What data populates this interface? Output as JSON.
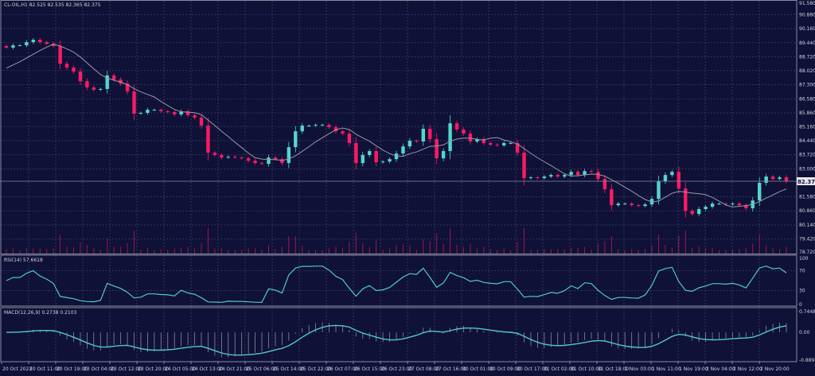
{
  "chart_data": {
    "type": "candlestick",
    "symbol_header": "CL-OIL,H1  82.525 82.535 82.365 82.375",
    "current_price_label": "82.375",
    "price_axis": {
      "range": [
        78.72,
        91.58
      ],
      "ticks": [
        "91.580",
        "90.880",
        "90.160",
        "89.440",
        "88.720",
        "88.020",
        "87.300",
        "86.580",
        "85.860",
        "85.160",
        "84.440",
        "83.720",
        "83.000",
        "81.580",
        "80.860",
        "80.140",
        "79.420",
        "78.720"
      ]
    },
    "closes": [
      89.19,
      89.31,
      89.31,
      89.47,
      89.59,
      89.47,
      89.39,
      89.27,
      88.37,
      88.17,
      87.97,
      87.48,
      87.16,
      87.04,
      87.08,
      87.77,
      87.56,
      87.36,
      86.95,
      85.82,
      85.86,
      86.02,
      86.02,
      85.94,
      85.9,
      85.78,
      85.94,
      85.74,
      85.62,
      85.21,
      83.83,
      83.71,
      83.58,
      83.62,
      83.58,
      83.54,
      83.42,
      83.3,
      83.26,
      83.58,
      83.5,
      83.3,
      84.11,
      84.92,
      85.21,
      85.21,
      85.25,
      85.25,
      85.13,
      84.92,
      84.8,
      84.32,
      83.3,
      83.71,
      83.91,
      83.34,
      83.38,
      83.5,
      83.79,
      84.15,
      84.44,
      84.4,
      85.05,
      84.52,
      83.54,
      83.91,
      85.33,
      85.01,
      84.8,
      84.4,
      84.52,
      84.32,
      84.24,
      84.2,
      84.32,
      84.32,
      83.83,
      82.53,
      82.57,
      82.53,
      82.61,
      82.69,
      82.61,
      82.69,
      82.85,
      82.69,
      82.89,
      82.85,
      82.49,
      81.96,
      81.15,
      81.23,
      81.23,
      81.15,
      81.11,
      81.19,
      81.47,
      82.37,
      82.69,
      82.85,
      82.0,
      80.86,
      80.7,
      80.95,
      81.07,
      81.23,
      81.23,
      81.19,
      81.23,
      81.15,
      80.99,
      81.39,
      82.29,
      82.61,
      82.49,
      82.57,
      82.375
    ],
    "moving_average": "gray line",
    "volume": "histogram bars",
    "x_ticks": [
      "20 Oct 2023",
      "20 Oct 11:00",
      "20 Oct 19:00",
      "23 Oct 04:00",
      "23 Oct 12:00",
      "23 Oct 20:00",
      "24 Oct 05:00",
      "24 Oct 13:00",
      "24 Oct 21:00",
      "25 Oct 06:00",
      "25 Oct 14:00",
      "25 Oct 22:00",
      "26 Oct 07:00",
      "26 Oct 15:00",
      "26 Oct 23:00",
      "27 Oct 08:00",
      "27 Oct 16:00",
      "30 Oct 01:00",
      "30 Oct 09:00",
      "30 Oct 17:00",
      "31 Oct 02:00",
      "31 Oct 10:00",
      "31 Oct 18:00",
      "1 Nov 03:00",
      "1 Nov 11:00",
      "1 Nov 19:00",
      "2 Nov 04:00",
      "2 Nov 12:00",
      "2 Nov 20:00"
    ],
    "rsi": {
      "label": "RSI(14) 57.6618",
      "ticks": [
        "100",
        "70",
        "30",
        "0"
      ],
      "range": [
        0,
        100
      ]
    },
    "macd": {
      "label": "MACD(12,26,9) 0.2738 0.2103",
      "ticks": [
        "0.7448",
        "0.00",
        "-0.8898"
      ],
      "range": [
        -0.8898,
        0.7448
      ]
    },
    "grid": true,
    "colors": {
      "background": "#0f1137",
      "bull": "#55d6cc",
      "bear": "#ff1a66",
      "ma": "#9a9aa6",
      "rsi": "#4fc9c7",
      "macd": "#4fc9c7",
      "grid": "#3c3f6c"
    }
  }
}
